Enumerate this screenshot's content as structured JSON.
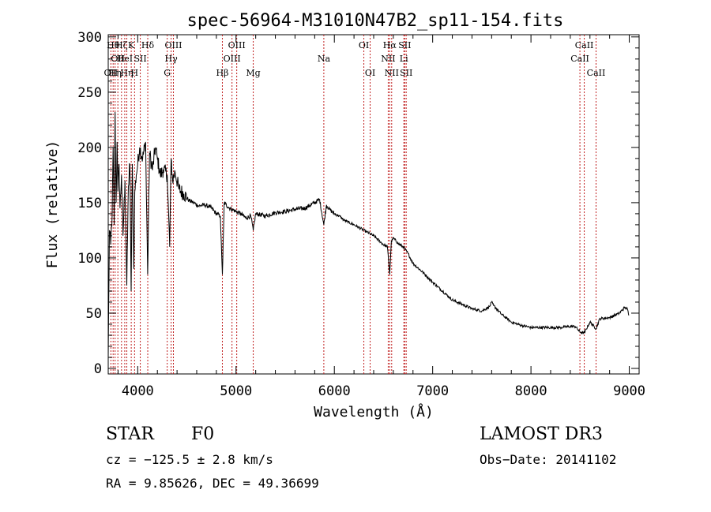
{
  "chart_data": {
    "type": "line",
    "title": "spec-56964-M31010N47B2_sp11-154.fits",
    "xlabel": "Wavelength (Å)",
    "ylabel": "Flux (relative)",
    "xlim": [
      3700,
      9100
    ],
    "ylim": [
      -5,
      302
    ],
    "xticks": [
      4000,
      5000,
      6000,
      7000,
      8000,
      9000
    ],
    "yticks": [
      0,
      50,
      100,
      150,
      200,
      250,
      300
    ],
    "grid": false,
    "series": [
      {
        "name": "flux",
        "x": [
          3700,
          3712,
          3725,
          3740,
          3750,
          3760,
          3770,
          3780,
          3790,
          3798,
          3810,
          3820,
          3835,
          3850,
          3870,
          3889,
          3905,
          3920,
          3933,
          3945,
          3960,
          3970,
          3985,
          4000,
          4020,
          4050,
          4080,
          4101,
          4120,
          4150,
          4180,
          4200,
          4230,
          4260,
          4300,
          4325,
          4340,
          4355,
          4380,
          4420,
          4470,
          4520,
          4570,
          4620,
          4680,
          4740,
          4800,
          4840,
          4861,
          4880,
          4920,
          4960,
          5000,
          5050,
          5100,
          5150,
          5175,
          5200,
          5300,
          5400,
          5500,
          5600,
          5700,
          5800,
          5850,
          5893,
          5920,
          5950,
          6000,
          6050,
          6100,
          6200,
          6300,
          6400,
          6500,
          6540,
          6563,
          6580,
          6600,
          6650,
          6700,
          6750,
          6800,
          6900,
          7000,
          7100,
          7200,
          7300,
          7400,
          7500,
          7580,
          7600,
          7620,
          7700,
          7800,
          7900,
          8000,
          8100,
          8200,
          8300,
          8400,
          8450,
          8498,
          8542,
          8600,
          8662,
          8700,
          8800,
          8900,
          8950,
          8980,
          8995
        ],
        "values": [
          10,
          125,
          112,
          140,
          200,
          130,
          232,
          150,
          205,
          160,
          185,
          145,
          175,
          120,
          170,
          75,
          165,
          185,
          70,
          185,
          90,
          160,
          175,
          185,
          200,
          190,
          205,
          85,
          195,
          180,
          200,
          190,
          175,
          180,
          175,
          110,
          190,
          170,
          178,
          162,
          158,
          152,
          150,
          147,
          148,
          146,
          140,
          138,
          85,
          150,
          146,
          144,
          142,
          140,
          136,
          138,
          125,
          140,
          138,
          141,
          142,
          144,
          145,
          150,
          153,
          130,
          148,
          144,
          140,
          138,
          134,
          130,
          125,
          120,
          112,
          110,
          85,
          115,
          118,
          113,
          110,
          104,
          95,
          87,
          78,
          70,
          62,
          58,
          54,
          52,
          56,
          60,
          57,
          49,
          42,
          39,
          37,
          37,
          37,
          37,
          38,
          38,
          33,
          32,
          42,
          36,
          45,
          46,
          50,
          55,
          54,
          48
        ]
      }
    ],
    "lines": [
      {
        "wave": 3727,
        "label": "OII",
        "row": 2
      },
      {
        "wave": 3750,
        "label": "Hθ",
        "row": 0
      },
      {
        "wave": 3770,
        "label": "Hη",
        "row": 2
      },
      {
        "wave": 3798,
        "label": "OII",
        "row": 1
      },
      {
        "wave": 3835,
        "label": "Hζ",
        "row": 0
      },
      {
        "wave": 3868,
        "label": "HeI",
        "row": 1
      },
      {
        "wave": 3889,
        "label": "Hη",
        "row": 2
      },
      {
        "wave": 3934,
        "label": "K",
        "row": 0
      },
      {
        "wave": 3968,
        "label": "H",
        "row": 2
      },
      {
        "wave": 4026,
        "label": "SII",
        "row": 1
      },
      {
        "wave": 4102,
        "label": "Hδ",
        "row": 0
      },
      {
        "wave": 4300,
        "label": "G",
        "row": 2
      },
      {
        "wave": 4340,
        "label": "Hγ",
        "row": 1
      },
      {
        "wave": 4363,
        "label": "OIII",
        "row": 0
      },
      {
        "wave": 4861,
        "label": "Hβ",
        "row": 2
      },
      {
        "wave": 4959,
        "label": "OIII",
        "row": 1
      },
      {
        "wave": 5007,
        "label": "OIII",
        "row": 0
      },
      {
        "wave": 5175,
        "label": "Mg",
        "row": 2
      },
      {
        "wave": 5893,
        "label": "Na",
        "row": 1
      },
      {
        "wave": 6300,
        "label": "OI",
        "row": 0
      },
      {
        "wave": 6364,
        "label": "OI",
        "row": 2
      },
      {
        "wave": 6548,
        "label": "NII",
        "row": 1
      },
      {
        "wave": 6563,
        "label": "Hα",
        "row": 0
      },
      {
        "wave": 6583,
        "label": "NII",
        "row": 2
      },
      {
        "wave": 6707,
        "label": "Li",
        "row": 1
      },
      {
        "wave": 6716,
        "label": "SII",
        "row": 0
      },
      {
        "wave": 6731,
        "label": "SII",
        "row": 2
      },
      {
        "wave": 8498,
        "label": "CaII",
        "row": 1
      },
      {
        "wave": 8542,
        "label": "CaII",
        "row": 0
      },
      {
        "wave": 8662,
        "label": "CaII",
        "row": 2
      }
    ]
  },
  "info": {
    "class": "STAR",
    "subclass": "F0",
    "survey": "LAMOST DR3",
    "redshift": "cz = −125.5 ± 2.8 km/s",
    "obsdate": "Obs−Date: 20141102",
    "coords": "RA =   9.85626, DEC =  49.36699"
  }
}
